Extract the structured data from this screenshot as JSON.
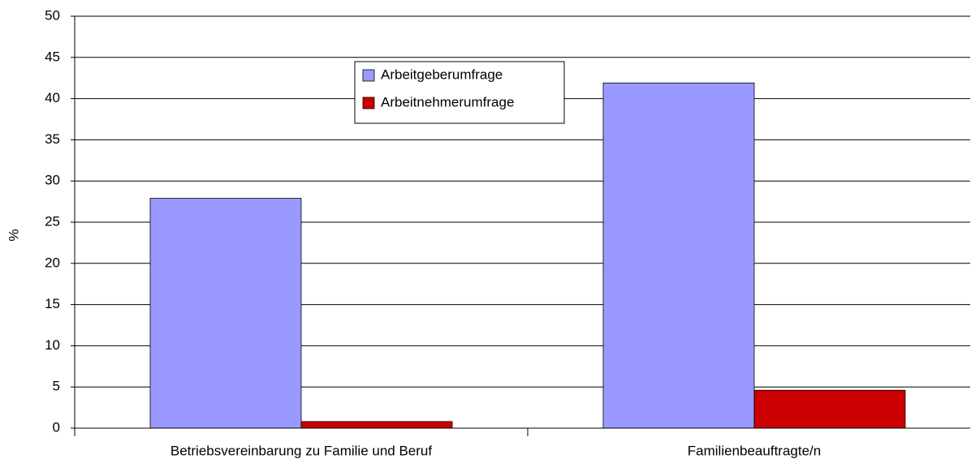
{
  "chart_data": {
    "type": "bar",
    "y_label": "%",
    "categories": [
      "Betriebsvereinbarung zu Familie und Beruf",
      "Familienbeauftragte/n"
    ],
    "series": [
      {
        "name": "Arbeitgeberumfrage",
        "color": "#9999ff",
        "values": [
          27.9,
          41.9
        ]
      },
      {
        "name": "Arbeitnehmerumfrage",
        "color": "#cc0000",
        "values": [
          0.8,
          4.6
        ]
      }
    ],
    "ylim": [
      0,
      50
    ],
    "yticks": [
      0,
      5,
      10,
      15,
      20,
      25,
      30,
      35,
      40,
      45,
      50
    ],
    "grid": true
  }
}
